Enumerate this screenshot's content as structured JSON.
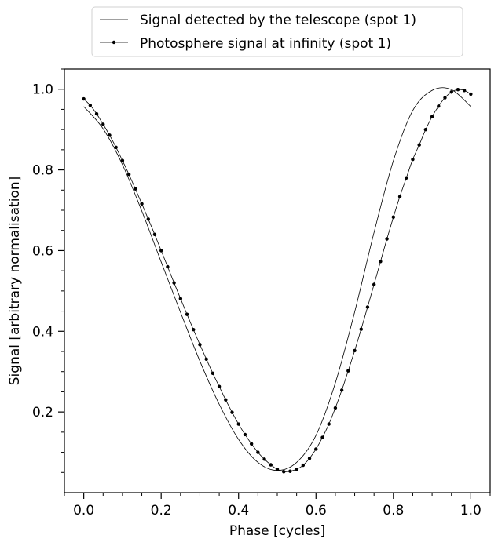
{
  "chart_data": {
    "type": "line",
    "xlabel": "Phase [cycles]",
    "ylabel": "Signal [arbitrary normalisation]",
    "xlim": [
      -0.05,
      1.05
    ],
    "ylim": [
      0.0,
      1.05
    ],
    "x_ticks": [
      0.0,
      0.2,
      0.4,
      0.6,
      0.8,
      1.0
    ],
    "x_tick_labels": [
      "0.0",
      "0.2",
      "0.4",
      "0.6",
      "0.8",
      "1.0"
    ],
    "y_ticks": [
      0.2,
      0.4,
      0.6,
      0.8,
      1.0
    ],
    "y_tick_labels": [
      "0.2",
      "0.4",
      "0.6",
      "0.8",
      "1.0"
    ],
    "grid": false,
    "legend_position": "top-center-outside",
    "series": [
      {
        "name": "Signal detected by the telescope (spot 1)",
        "marker": "none",
        "color": "#000000",
        "x": [
          0.0,
          0.05,
          0.1,
          0.15,
          0.2,
          0.25,
          0.3,
          0.35,
          0.4,
          0.45,
          0.5,
          0.55,
          0.6,
          0.65,
          0.7,
          0.75,
          0.8,
          0.85,
          0.9,
          0.95,
          1.0
        ],
        "y": [
          0.957,
          0.902,
          0.813,
          0.698,
          0.572,
          0.447,
          0.326,
          0.219,
          0.132,
          0.075,
          0.055,
          0.075,
          0.142,
          0.272,
          0.448,
          0.645,
          0.823,
          0.947,
          0.997,
          0.999,
          0.957
        ]
      },
      {
        "name": "Photosphere signal at infinity (spot 1)",
        "marker": "dot",
        "color": "#000000",
        "x": [
          0.0,
          0.0167,
          0.0333,
          0.05,
          0.0667,
          0.0833,
          0.1,
          0.1167,
          0.1333,
          0.15,
          0.1667,
          0.1833,
          0.2,
          0.2167,
          0.2333,
          0.25,
          0.2667,
          0.2833,
          0.3,
          0.3167,
          0.3333,
          0.35,
          0.3667,
          0.3833,
          0.4,
          0.4167,
          0.4333,
          0.45,
          0.4667,
          0.4833,
          0.5,
          0.5167,
          0.5333,
          0.55,
          0.5667,
          0.5833,
          0.6,
          0.6167,
          0.6333,
          0.65,
          0.6667,
          0.6833,
          0.7,
          0.7167,
          0.7333,
          0.75,
          0.7667,
          0.7833,
          0.8,
          0.8167,
          0.8333,
          0.85,
          0.8667,
          0.8833,
          0.9,
          0.9167,
          0.9333,
          0.95,
          0.9667,
          0.9833,
          1.0
        ],
        "y": [
          0.976,
          0.96,
          0.939,
          0.913,
          0.886,
          0.856,
          0.823,
          0.789,
          0.753,
          0.716,
          0.678,
          0.64,
          0.6,
          0.56,
          0.52,
          0.481,
          0.442,
          0.404,
          0.367,
          0.331,
          0.296,
          0.263,
          0.23,
          0.199,
          0.17,
          0.144,
          0.121,
          0.1,
          0.083,
          0.069,
          0.058,
          0.052,
          0.053,
          0.058,
          0.068,
          0.085,
          0.108,
          0.137,
          0.17,
          0.21,
          0.254,
          0.302,
          0.352,
          0.405,
          0.46,
          0.516,
          0.573,
          0.629,
          0.683,
          0.734,
          0.78,
          0.826,
          0.862,
          0.9,
          0.932,
          0.958,
          0.979,
          0.993,
          0.999,
          0.997,
          0.988
        ]
      }
    ]
  }
}
